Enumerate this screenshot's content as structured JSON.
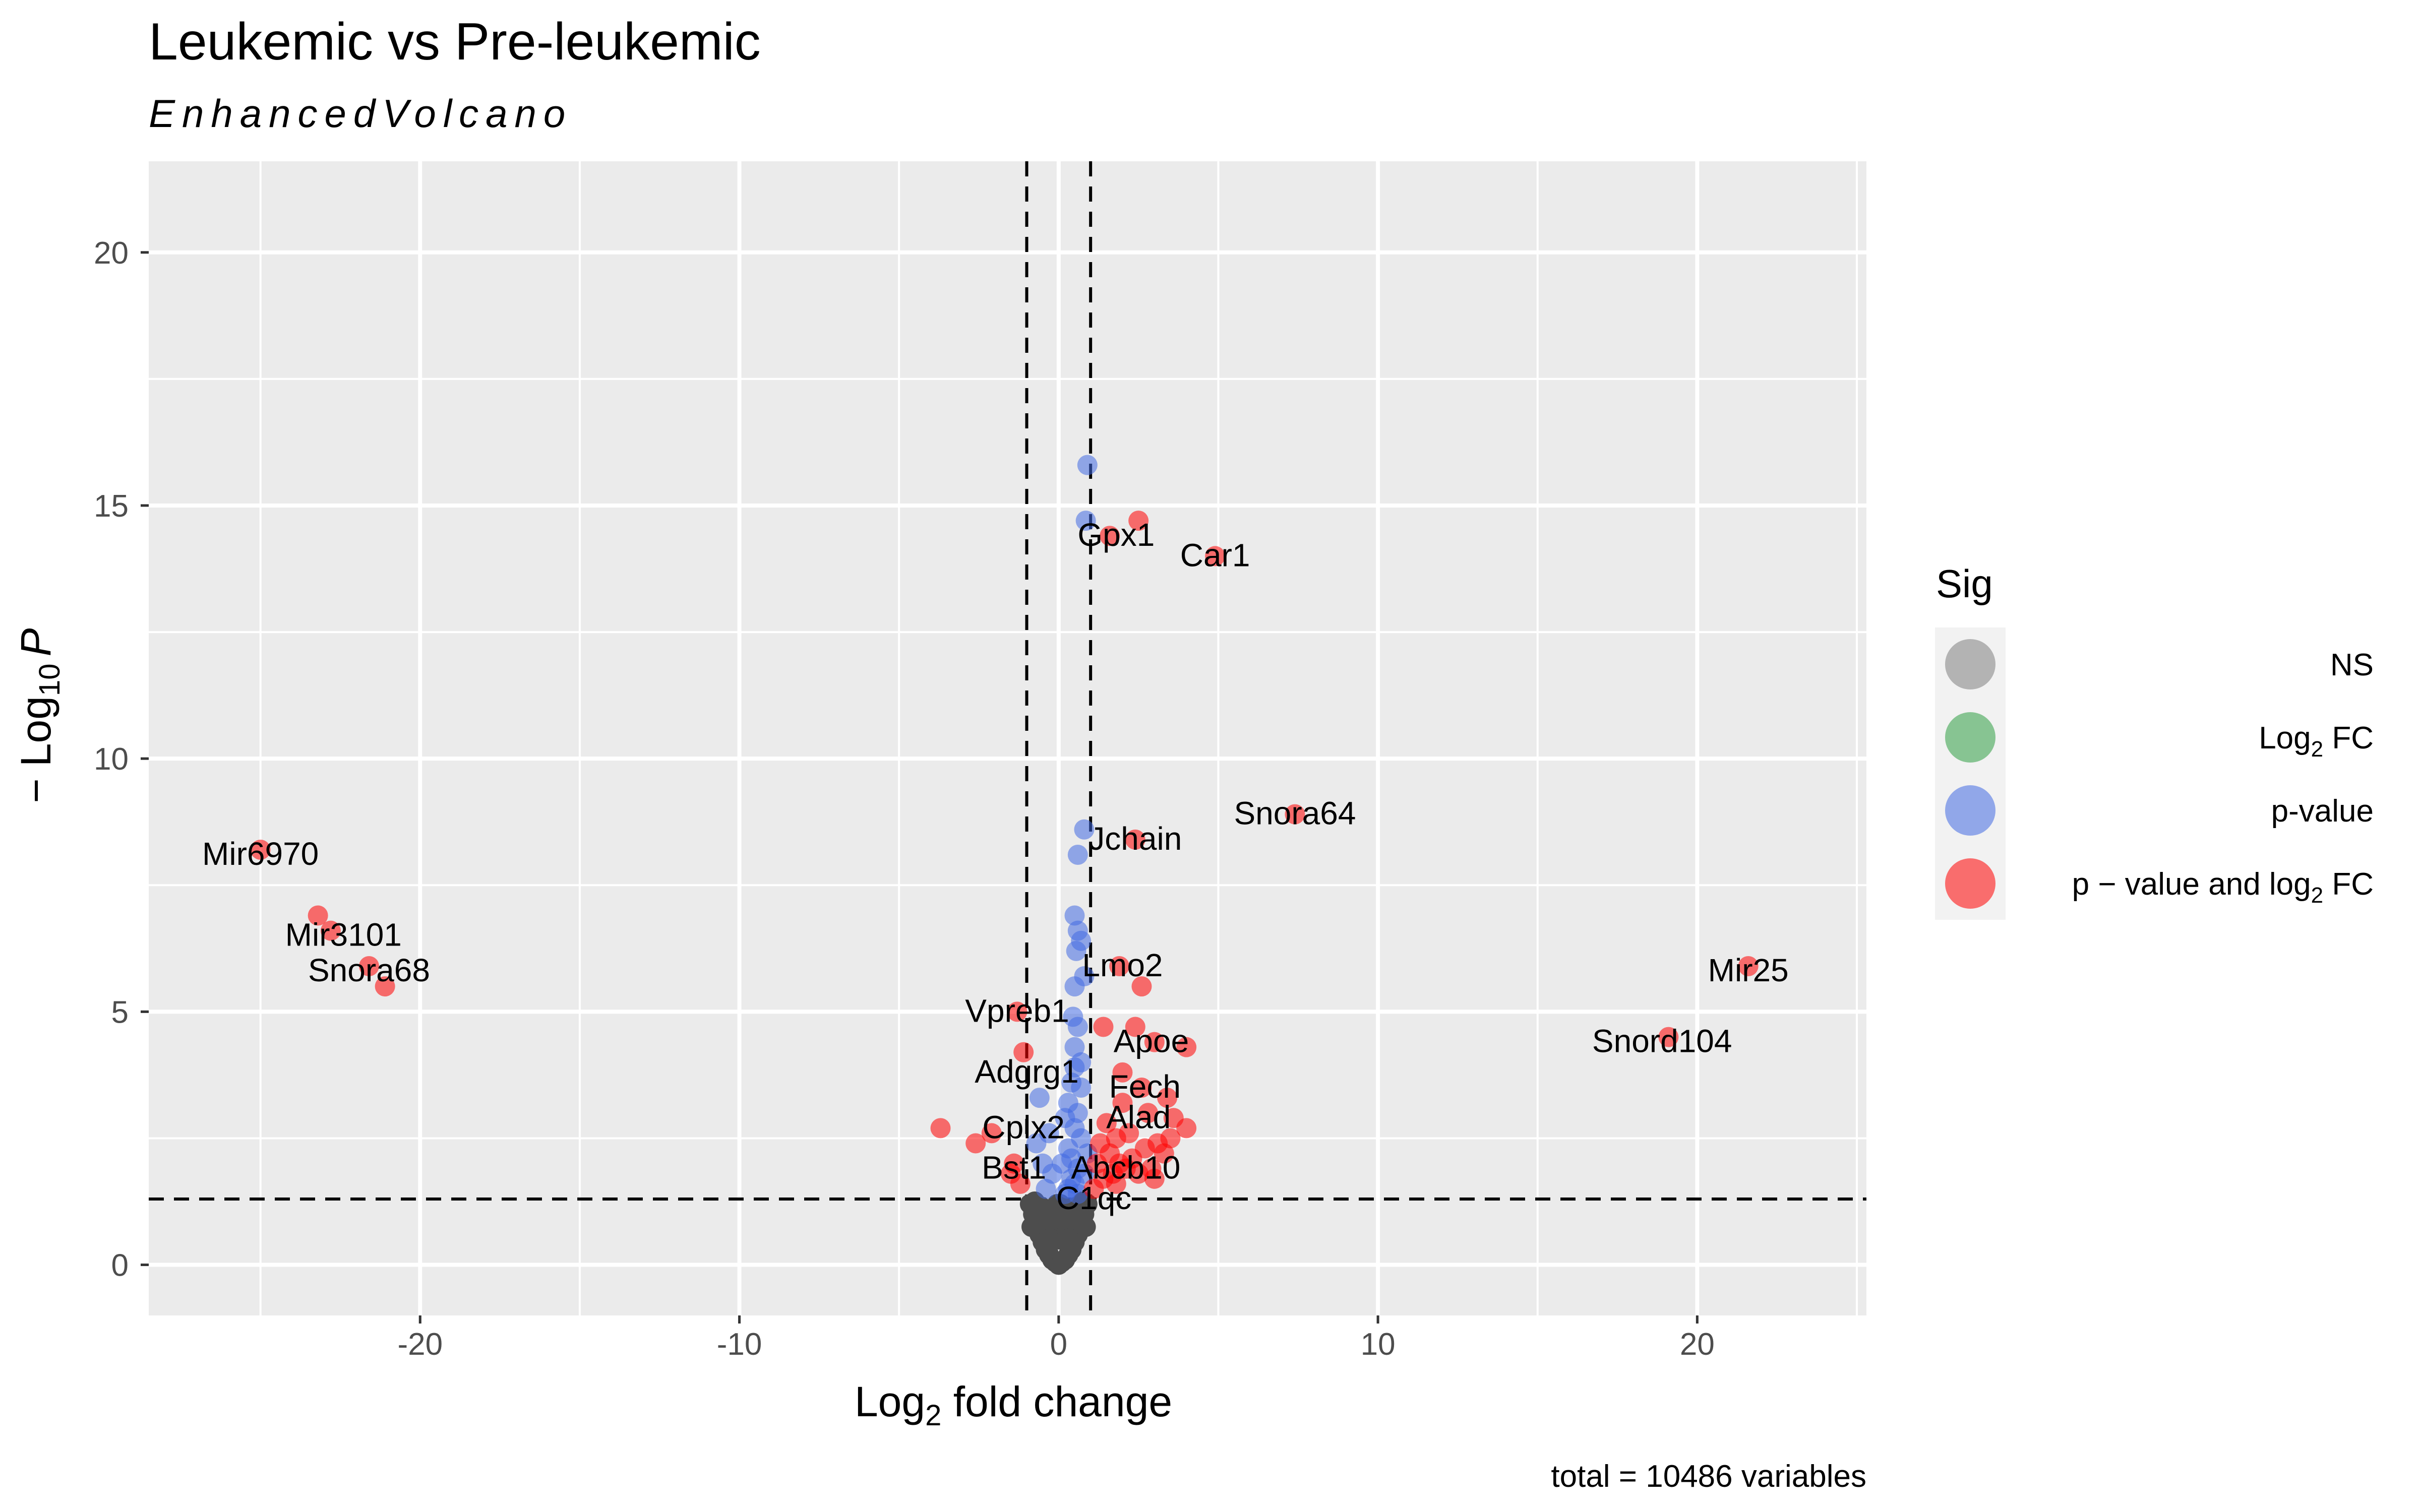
{
  "chart_data": {
    "type": "scatter",
    "title": "Leukemic vs Pre-leukemic",
    "subtitle": "EnhancedVolcano",
    "xlabel": {
      "base": "Log",
      "sub": "2",
      "rest": " fold change"
    },
    "ylabel": {
      "prefix": "− Log",
      "sub": "10",
      "var": "P"
    },
    "xlim": [
      -28.5,
      25.3
    ],
    "ylim": [
      -1,
      21.8
    ],
    "xticks": [
      -20,
      -10,
      0,
      10,
      20
    ],
    "yticks": [
      0,
      5,
      10,
      15,
      20
    ],
    "grid": true,
    "cutoffs": {
      "log2fc": [
        -1,
        1
      ],
      "neg_log10_p": 1.3
    },
    "caption": "total = 10486 variables",
    "legend": {
      "title": "Sig",
      "position": "right",
      "items": [
        {
          "key": "NS",
          "color": "#808080",
          "label": [
            "NS"
          ]
        },
        {
          "key": "FC",
          "color": "#2f9e44",
          "label": [
            "Log",
            "2",
            " FC"
          ]
        },
        {
          "key": "P",
          "color": "#4169e1",
          "label": [
            "p-value"
          ]
        },
        {
          "key": "FC_P",
          "color": "#ff0000",
          "label": [
            "p − value and log",
            "2",
            " FC"
          ]
        }
      ]
    },
    "series": [
      {
        "name": "NS",
        "color": "#4d4d4d",
        "x": [
          0,
          -0.2,
          0.2,
          -0.4,
          0.4,
          -0.6,
          0.6,
          -0.3,
          0.3,
          -0.8,
          0.8,
          -0.5,
          0.5,
          -0.1,
          0.1,
          -0.7,
          0.7,
          -0.9,
          0.9,
          0,
          -0.25,
          0.25,
          -0.45,
          0.45,
          -0.65,
          0.65,
          -0.15,
          0.15,
          -0.35,
          0.35,
          -0.55,
          0.55,
          -0.75,
          0.75,
          -0.05,
          0.05,
          0.85,
          -0.85
        ],
        "y": [
          0,
          0.1,
          0.1,
          0.3,
          0.3,
          0.6,
          0.6,
          0.2,
          0.2,
          1.0,
          1.0,
          0.45,
          0.45,
          0.05,
          0.05,
          0.8,
          0.8,
          1.2,
          1.2,
          0.5,
          0.7,
          0.7,
          0.9,
          0.9,
          1.1,
          1.1,
          0.9,
          0.9,
          1.05,
          1.05,
          1.15,
          1.15,
          1.25,
          1.25,
          1.2,
          1.2,
          0.75,
          0.75
        ]
      },
      {
        "name": "Log2 FC",
        "color": "#2f9e44",
        "x": [],
        "y": []
      },
      {
        "name": "p-value",
        "color": "#4169e1",
        "x": [
          0.9,
          0.85,
          0.8,
          0.6,
          0.5,
          0.6,
          0.7,
          0.55,
          0.8,
          0.5,
          0.45,
          0.6,
          0.5,
          0.7,
          -0.6,
          0.4,
          0.3,
          0.6,
          0.2,
          0.5,
          -0.3,
          0.7,
          0.3,
          0.9,
          0.4,
          0.1,
          -0.5,
          0.6,
          0.8,
          -0.2,
          0.4,
          0.5,
          0.3,
          -0.4,
          0.2,
          0.6,
          0.7,
          -0.7,
          0.5
        ],
        "y": [
          15.8,
          14.7,
          8.6,
          8.1,
          6.9,
          6.6,
          6.4,
          6.2,
          5.7,
          5.5,
          4.9,
          4.7,
          4.3,
          4.0,
          3.3,
          3.6,
          3.2,
          3.0,
          2.9,
          2.7,
          2.6,
          2.5,
          2.3,
          2.2,
          2.1,
          2.0,
          2.0,
          1.9,
          1.8,
          1.8,
          1.7,
          1.6,
          1.5,
          1.5,
          1.4,
          1.4,
          3.5,
          2.4,
          3.9
        ]
      },
      {
        "name": "p − value and log2 FC",
        "color": "#ff0000",
        "x": [
          -25,
          -23.2,
          -22.8,
          -21.6,
          -21.1,
          2.5,
          1.6,
          4.9,
          7.4,
          2.4,
          1.9,
          2.6,
          1.4,
          2.4,
          3.0,
          4.0,
          2.0,
          2.6,
          3.4,
          2.0,
          2.8,
          3.6,
          4.0,
          1.5,
          2.2,
          1.8,
          3.1,
          2.7,
          1.3,
          1.6,
          2.3,
          1.9,
          3.3,
          1.2,
          2.1,
          1.7,
          3.0,
          2.5,
          1.4,
          2.9,
          3.5,
          1.8,
          1.1,
          21.6,
          19.1,
          -1.3,
          -1.1,
          -3.7,
          -2.6,
          -2.1,
          -1.4,
          -1.5,
          -1.2
        ],
        "y": [
          8.2,
          6.9,
          6.6,
          5.9,
          5.5,
          14.7,
          14.4,
          14.0,
          8.9,
          8.4,
          5.9,
          5.5,
          4.7,
          4.7,
          4.4,
          4.3,
          3.8,
          3.5,
          3.3,
          3.2,
          3.0,
          2.9,
          2.7,
          2.8,
          2.6,
          2.5,
          2.4,
          2.3,
          2.4,
          2.2,
          2.1,
          2.0,
          2.2,
          2.0,
          1.9,
          1.8,
          1.7,
          1.8,
          1.7,
          1.9,
          2.5,
          1.6,
          1.5,
          5.9,
          4.5,
          5.0,
          4.2,
          2.7,
          2.4,
          2.6,
          2.0,
          1.8,
          1.6
        ]
      }
    ],
    "labels": [
      {
        "text": "Mir6970",
        "x": -25,
        "y": 8.1
      },
      {
        "text": "Mir3101",
        "x": -22.4,
        "y": 6.5
      },
      {
        "text": "Snora68",
        "x": -21.6,
        "y": 5.8
      },
      {
        "text": "Gpx1",
        "x": 1.8,
        "y": 14.4
      },
      {
        "text": "Car1",
        "x": 4.9,
        "y": 14.0
      },
      {
        "text": "Snora64",
        "x": 7.4,
        "y": 8.9
      },
      {
        "text": "Jchain",
        "x": 2.4,
        "y": 8.4
      },
      {
        "text": "Lmo2",
        "x": 2.0,
        "y": 5.9
      },
      {
        "text": "Vpreb1",
        "x": -1.3,
        "y": 5.0
      },
      {
        "text": "Apoe",
        "x": 2.9,
        "y": 4.4
      },
      {
        "text": "Adgrg1",
        "x": -1.0,
        "y": 3.8
      },
      {
        "text": "Fech",
        "x": 2.7,
        "y": 3.5
      },
      {
        "text": "Alad",
        "x": 2.5,
        "y": 2.9
      },
      {
        "text": "Cplx2",
        "x": -1.1,
        "y": 2.7
      },
      {
        "text": "Abcb10",
        "x": 2.1,
        "y": 1.9
      },
      {
        "text": "Bst1",
        "x": -1.4,
        "y": 1.9
      },
      {
        "text": "C1qc",
        "x": 1.1,
        "y": 1.3
      },
      {
        "text": "Mir25",
        "x": 21.6,
        "y": 5.8
      },
      {
        "text": "Snord104",
        "x": 18.9,
        "y": 4.4
      }
    ]
  }
}
